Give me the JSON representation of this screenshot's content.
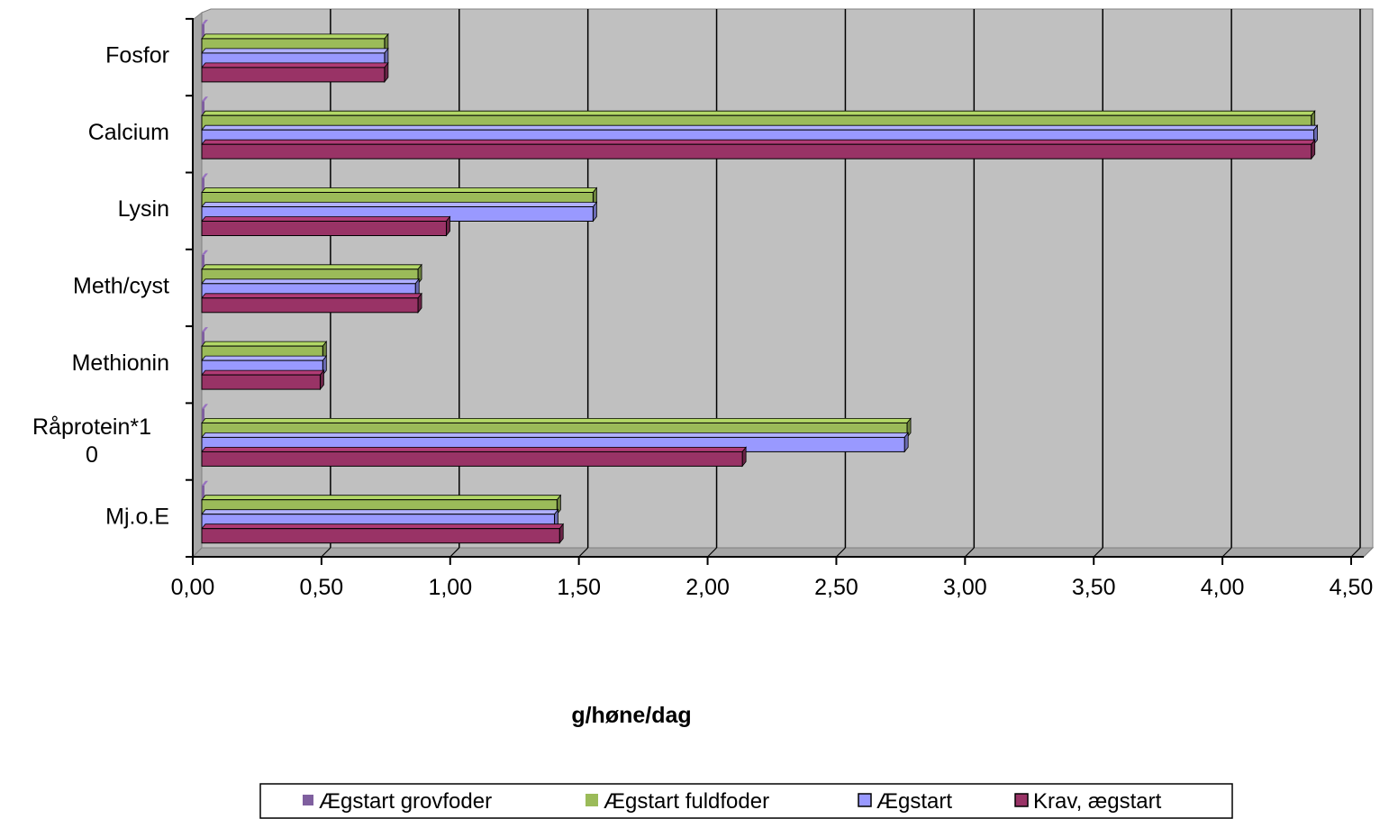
{
  "chart_data": {
    "type": "bar",
    "orientation": "horizontal",
    "categories": [
      "Mj.o.E",
      "Råprotein*1\n0",
      "Methionin",
      "Meth/cyst",
      "Lysin",
      "Calcium",
      "Fosfor"
    ],
    "series": [
      {
        "name": "Ægstart grovfoder",
        "color": "#7f5f9f",
        "values": [
          0,
          0,
          0,
          0,
          0,
          0,
          0
        ]
      },
      {
        "name": "Ægstart fuldfoder",
        "color": "#9bbb59",
        "values": [
          1.38,
          2.74,
          0.47,
          0.84,
          1.52,
          4.31,
          0.71
        ]
      },
      {
        "name": "Ægstart",
        "color": "#9999ff",
        "values": [
          1.37,
          2.73,
          0.47,
          0.83,
          1.52,
          4.32,
          0.71
        ]
      },
      {
        "name": "Krav, ægstart",
        "color": "#993366",
        "values": [
          1.39,
          2.1,
          0.46,
          0.84,
          0.95,
          4.31,
          0.71
        ]
      }
    ],
    "x_ticks": [
      "0,00",
      "0,50",
      "1,00",
      "1,50",
      "2,00",
      "2,50",
      "3,00",
      "3,50",
      "4,00",
      "4,50"
    ],
    "xlim": [
      0,
      4.5
    ],
    "xlabel": "g/høne/dag",
    "grid": "vertical",
    "legend_position": "bottom",
    "plot_background": "#c0c0c0"
  }
}
